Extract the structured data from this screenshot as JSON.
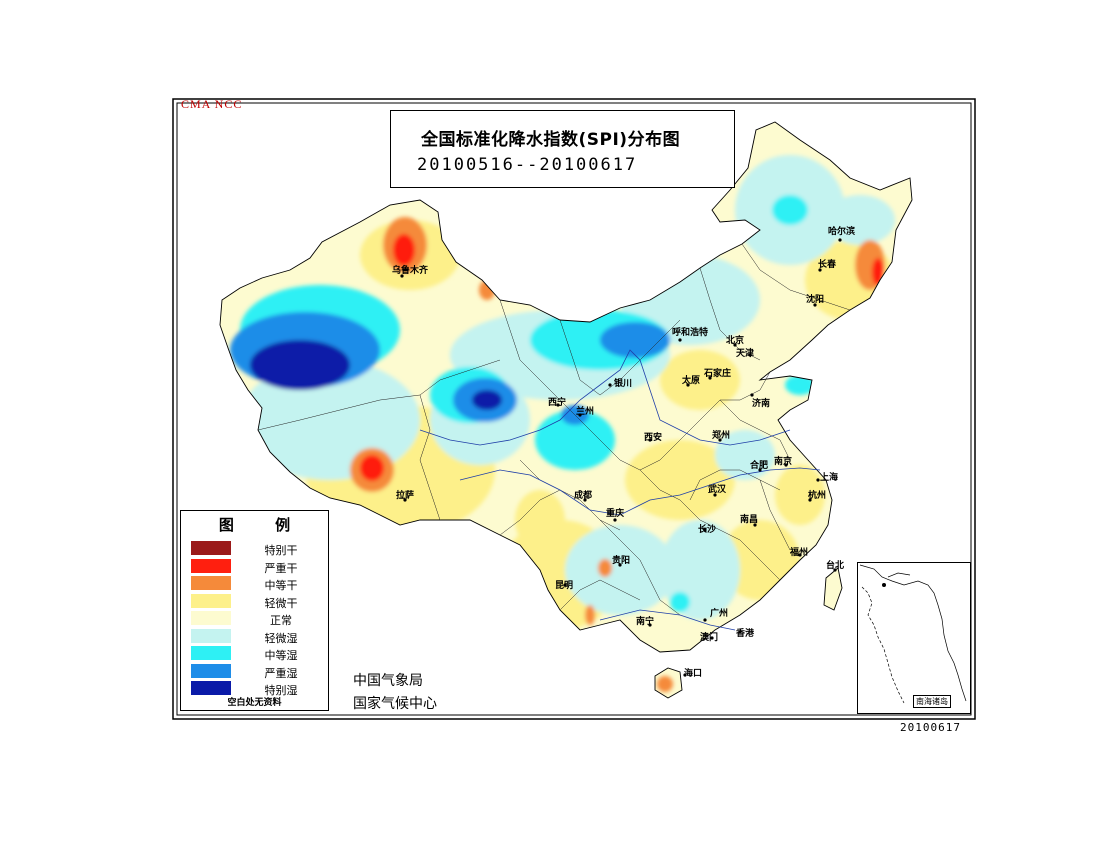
{
  "agency_tag": "CMA NCC",
  "title": {
    "line1": "全国标准化降水指数(SPI)分布图",
    "line2": "20100516--20100617"
  },
  "legend": {
    "title": "图 例",
    "items": [
      {
        "label": "特别干",
        "color": "#9b1a1a"
      },
      {
        "label": "严重干",
        "color": "#ff1f0f"
      },
      {
        "label": "中等干",
        "color": "#f58a3a"
      },
      {
        "label": "轻微干",
        "color": "#fdf08a"
      },
      {
        "label": "正常",
        "color": "#fdfbd0"
      },
      {
        "label": "轻微湿",
        "color": "#c4f3f0"
      },
      {
        "label": "中等湿",
        "color": "#2ef0f4"
      },
      {
        "label": "严重湿",
        "color": "#1e8de8"
      },
      {
        "label": "特别湿",
        "color": "#0a1aa8"
      }
    ],
    "note": "空白处无资料"
  },
  "org": {
    "line1": "中国气象局",
    "line2": "国家气候中心"
  },
  "date_stamp": "20100617",
  "inset_label": "南海诸岛",
  "cities": [
    {
      "name": "乌鲁木齐"
    },
    {
      "name": "哈尔滨"
    },
    {
      "name": "长春"
    },
    {
      "name": "沈阳"
    },
    {
      "name": "呼和浩特"
    },
    {
      "name": "北京"
    },
    {
      "name": "天津"
    },
    {
      "name": "太原"
    },
    {
      "name": "石家庄"
    },
    {
      "name": "济南"
    },
    {
      "name": "银川"
    },
    {
      "name": "西宁"
    },
    {
      "name": "兰州"
    },
    {
      "name": "西安"
    },
    {
      "name": "郑州"
    },
    {
      "name": "合肥"
    },
    {
      "name": "南京"
    },
    {
      "name": "上海"
    },
    {
      "name": "拉萨"
    },
    {
      "name": "成都"
    },
    {
      "name": "重庆"
    },
    {
      "name": "武汉"
    },
    {
      "name": "杭州"
    },
    {
      "name": "南昌"
    },
    {
      "name": "长沙"
    },
    {
      "name": "福州"
    },
    {
      "name": "贵阳"
    },
    {
      "name": "昆明"
    },
    {
      "name": "南宁"
    },
    {
      "name": "广州"
    },
    {
      "name": "香港"
    },
    {
      "name": "澳门"
    },
    {
      "name": "台北"
    },
    {
      "name": "海口"
    }
  ]
}
